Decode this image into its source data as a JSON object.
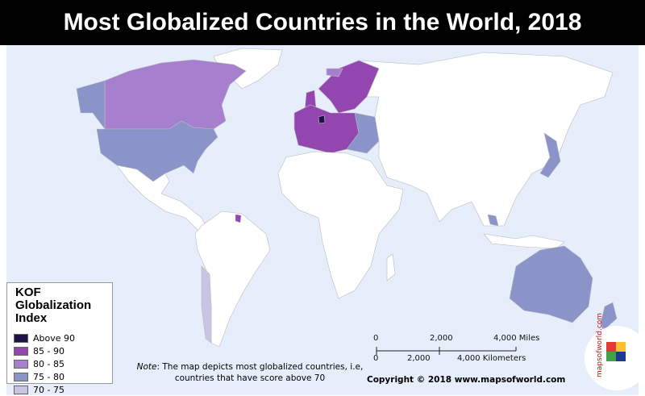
{
  "header": {
    "title": "Most Globalized Countries in the World, 2018"
  },
  "legend": {
    "title": "KOF Globalization Index",
    "items": [
      {
        "label": "Above 90",
        "color": "#1c1245"
      },
      {
        "label": "85 - 90",
        "color": "#9446b0"
      },
      {
        "label": "80 - 85",
        "color": "#a77fcf"
      },
      {
        "label": "75 - 80",
        "color": "#8a94c9"
      },
      {
        "label": "70 - 75",
        "color": "#c7c4e4"
      }
    ]
  },
  "scale": {
    "miles": [
      "0",
      "2,000",
      "4,000 Miles"
    ],
    "kilometers": [
      "0",
      "2,000",
      "4,000 Kilometers"
    ]
  },
  "note": {
    "label": "Note",
    "text": ": The map depicts most globalized countries, i.e, countries that have score above 70"
  },
  "copyright": "Copyright © 2018 www.mapsofworld.com",
  "logo": "mapsofworld.com"
}
